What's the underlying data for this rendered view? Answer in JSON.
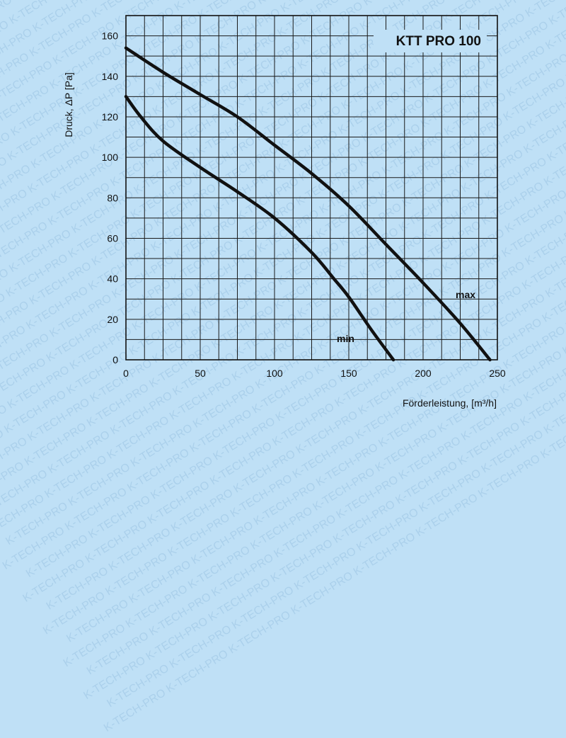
{
  "watermark_text": "K-TECH-PRO",
  "colors": {
    "background": "#bfe0f6",
    "grid": "#1a1a1a",
    "curve": "#111111"
  },
  "chart_data": {
    "type": "line",
    "title": "KTT PRO 100",
    "xlabel": "Förderleistung, [m³/h]",
    "ylabel": "Druck, ΔP [Pa]",
    "xlim": [
      0,
      250
    ],
    "ylim": [
      0,
      170
    ],
    "xticks": [
      0,
      50,
      100,
      150,
      200,
      250
    ],
    "yticks": [
      0,
      20,
      40,
      60,
      80,
      100,
      120,
      140,
      160
    ],
    "grid": true,
    "series": [
      {
        "name": "max",
        "x": [
          0,
          25,
          50,
          75,
          100,
          125,
          150,
          175,
          200,
          225,
          245
        ],
        "y": [
          154,
          142,
          131,
          120,
          106,
          92,
          76,
          57,
          38,
          18,
          0
        ]
      },
      {
        "name": "min",
        "x": [
          0,
          10,
          25,
          50,
          75,
          100,
          125,
          140,
          150,
          165,
          180
        ],
        "y": [
          130,
          120,
          108,
          95,
          83,
          70,
          53,
          40,
          31,
          15,
          0
        ]
      }
    ]
  }
}
